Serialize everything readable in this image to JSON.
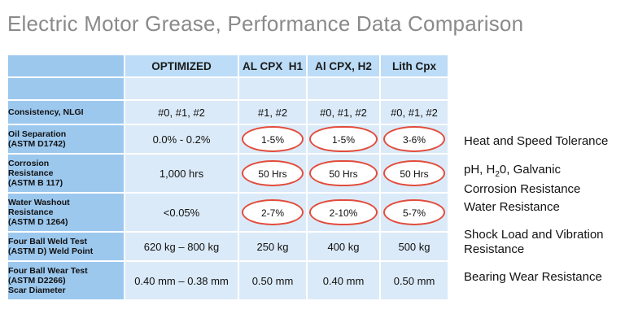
{
  "title": "Electric Motor Grease, Performance Data Comparison",
  "columns": [
    "OPTIMIZED",
    "AL CPX  H1",
    "Al CPX, H2",
    "Lith Cpx"
  ],
  "rows": [
    {
      "label": [
        "Consistency, NLGI"
      ],
      "values": [
        "#0, #1, #2",
        "#1, #2",
        "#0, #1, #2",
        "#0, #1, #2"
      ]
    },
    {
      "label": [
        "Oil Separation",
        "(ASTM D1742)"
      ],
      "values": [
        "0.0% - 0.2%",
        "1-5%",
        "1-5%",
        "3-6%"
      ]
    },
    {
      "label": [
        "Corrosion",
        "Resistance",
        "(ASTM B 117)"
      ],
      "values": [
        "1,000 hrs",
        "50 Hrs",
        "50 Hrs",
        "50 Hrs"
      ]
    },
    {
      "label": [
        "Water Washout",
        "Resistance",
        "(ASTM D 1264)"
      ],
      "values": [
        "<0.05%",
        "2-7%",
        "2-10%",
        "5-7%"
      ]
    },
    {
      "label": [
        "Four Ball Weld Test",
        "(ASTM D) Weld Point"
      ],
      "values": [
        "620 kg – 800 kg",
        "250 kg",
        "400 kg",
        "500 kg"
      ]
    },
    {
      "label": [
        "Four Ball Wear Test",
        "(ASTM D2266)",
        "Scar Diameter"
      ],
      "values": [
        "0.40 mm – 0.38 mm",
        "0.50 mm",
        "0.40 mm",
        "0.50 mm"
      ]
    }
  ],
  "notes": {
    "heat": "Heat and Speed Tolerance",
    "ph_pre": "pH, H",
    "ph_sub": "2",
    "ph_post": "0, Galvanic",
    "ph_line2": "Corrosion Resistance",
    "water": "Water Resistance",
    "shock1": "Shock Load and Vibration",
    "shock2": "Resistance",
    "bearing": "Bearing Wear Resistance"
  },
  "highlight_color": "#e24c3c"
}
